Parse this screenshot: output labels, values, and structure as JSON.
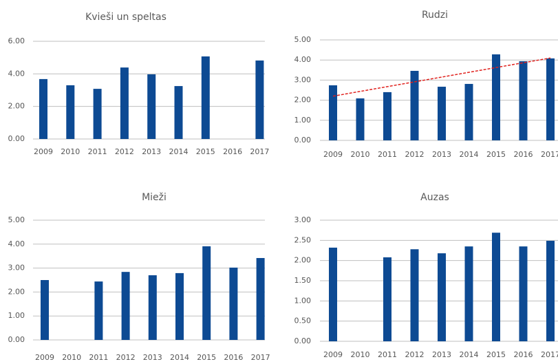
{
  "chart_data": [
    {
      "type": "bar",
      "title": "Kvieši un speltas",
      "categories": [
        "2009",
        "2010",
        "2011",
        "2012",
        "2013",
        "2014",
        "2015",
        "2016",
        "2017"
      ],
      "values": [
        3.68,
        3.3,
        3.08,
        4.39,
        3.97,
        3.25,
        5.07,
        null,
        4.82
      ],
      "color": "#0d4a93",
      "ylim": [
        0,
        6
      ],
      "yticks": [
        {
          "value": 0,
          "label": "0.00"
        },
        {
          "value": 2,
          "label": "2.00"
        },
        {
          "value": 4,
          "label": "4.00"
        },
        {
          "value": 6,
          "label": "6.00"
        }
      ],
      "grid": true
    },
    {
      "type": "bar",
      "title": "Rudzi",
      "categories": [
        "2009",
        "2010",
        "2011",
        "2012",
        "2013",
        "2014",
        "2015",
        "2016",
        "2017"
      ],
      "values": [
        2.74,
        2.09,
        2.4,
        3.46,
        2.67,
        2.81,
        4.28,
        3.94,
        4.08
      ],
      "color": "#0d4a93",
      "ylim": [
        0,
        5
      ],
      "yticks": [
        {
          "value": 0,
          "label": "0.00"
        },
        {
          "value": 1,
          "label": "1.00"
        },
        {
          "value": 2,
          "label": "2.00"
        },
        {
          "value": 3,
          "label": "3.00"
        },
        {
          "value": 4,
          "label": "4.00"
        },
        {
          "value": 5,
          "label": "5.00"
        }
      ],
      "grid": true,
      "trendline": {
        "start": 2.2,
        "end": 4.1,
        "color": "#e0201c"
      }
    },
    {
      "type": "bar",
      "title": "Mieži",
      "categories": [
        "2009",
        "2010",
        "2011",
        "2012",
        "2013",
        "2014",
        "2015",
        "2016",
        "2017"
      ],
      "values": [
        2.5,
        null,
        2.44,
        2.84,
        2.7,
        2.79,
        3.91,
        3.02,
        3.42
      ],
      "color": "#0d4a93",
      "ylim": [
        0,
        5
      ],
      "yticks": [
        {
          "value": 0,
          "label": "0.00"
        },
        {
          "value": 1,
          "label": "1.00"
        },
        {
          "value": 2,
          "label": "2.00"
        },
        {
          "value": 3,
          "label": "3.00"
        },
        {
          "value": 4,
          "label": "4.00"
        },
        {
          "value": 5,
          "label": "5.00"
        }
      ],
      "grid": true
    },
    {
      "type": "bar",
      "title": "Auzas",
      "categories": [
        "2009",
        "2010",
        "2011",
        "2012",
        "2013",
        "2014",
        "2015",
        "2016",
        "2017"
      ],
      "values": [
        2.32,
        null,
        2.08,
        2.28,
        2.18,
        2.35,
        2.69,
        2.35,
        2.49
      ],
      "color": "#0d4a93",
      "ylim": [
        0,
        3
      ],
      "yticks": [
        {
          "value": 0,
          "label": "0.00"
        },
        {
          "value": 0.5,
          "label": "0.50"
        },
        {
          "value": 1,
          "label": "1.00"
        },
        {
          "value": 1.5,
          "label": "1.50"
        },
        {
          "value": 2,
          "label": "2.00"
        },
        {
          "value": 2.5,
          "label": "2.50"
        },
        {
          "value": 3,
          "label": "3.00"
        }
      ],
      "grid": true
    }
  ]
}
